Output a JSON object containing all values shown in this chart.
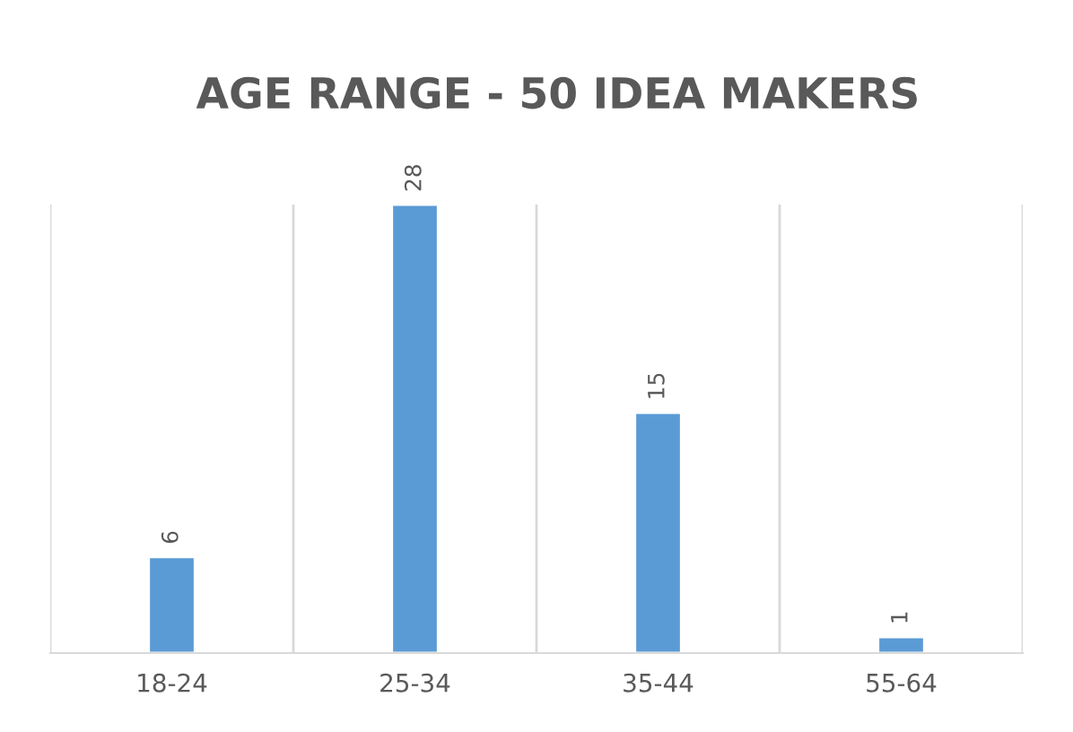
{
  "chart_data": {
    "type": "bar",
    "title": "AGE RANGE - 50 IDEA MAKERS",
    "categories": [
      "18-24",
      "25-34",
      "35-44",
      "55-64"
    ],
    "values": [
      6,
      28,
      15,
      1
    ],
    "color": "#5b9bd5",
    "data_labels": true,
    "grid": "x"
  }
}
